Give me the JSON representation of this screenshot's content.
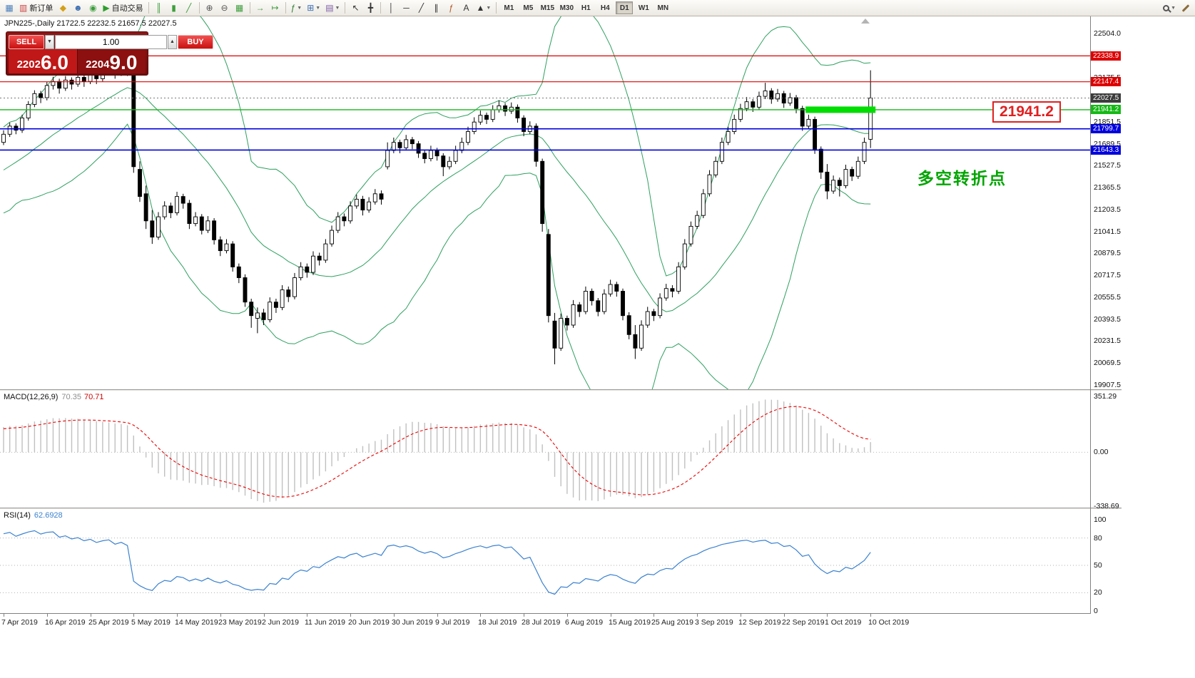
{
  "toolbar": {
    "items": [
      {
        "name": "chart-icon",
        "glyph": "▦",
        "color": "#4a7ebb"
      },
      {
        "name": "new-order-button",
        "glyph": "▥",
        "color": "#cc4444",
        "label": "新订单"
      },
      {
        "name": "mql5-icon",
        "glyph": "◆",
        "color": "#d4a017"
      },
      {
        "name": "community-icon",
        "glyph": "☻",
        "color": "#3d6fb4"
      },
      {
        "name": "news-icon",
        "glyph": "◉",
        "color": "#3d9e3d"
      },
      {
        "name": "autotrading-button",
        "glyph": "▶",
        "color": "#2e9e2e",
        "label": "自动交易"
      },
      {
        "sep": true
      },
      {
        "name": "bar-chart-button",
        "glyph": "║",
        "color": "#3d9e3d"
      },
      {
        "name": "candlestick-button",
        "glyph": "▮",
        "color": "#3d9e3d"
      },
      {
        "name": "line-chart-button",
        "glyph": "╱",
        "color": "#3d9e3d"
      },
      {
        "sep": true
      },
      {
        "name": "zoom-in-button",
        "glyph": "⊕",
        "color": "#555555"
      },
      {
        "name": "zoom-out-button",
        "glyph": "⊖",
        "color": "#555555"
      },
      {
        "name": "tile-windows-button",
        "glyph": "▦",
        "color": "#3d9e3d"
      },
      {
        "sep": true
      },
      {
        "name": "auto-scroll-button",
        "glyph": "→",
        "color": "#3d9e3d"
      },
      {
        "name": "chart-shift-button",
        "glyph": "↦",
        "color": "#3d9e3d"
      },
      {
        "sep": true
      },
      {
        "name": "indicators-button",
        "glyph": "ƒ",
        "color": "#2e7d32",
        "caret": true
      },
      {
        "name": "new-chart-button",
        "glyph": "⊞",
        "color": "#3d6fb4",
        "caret": true
      },
      {
        "name": "profiles-button",
        "glyph": "▤",
        "color": "#7b5aa6",
        "caret": true
      },
      {
        "sep": true
      },
      {
        "name": "cursor-button",
        "glyph": "↖",
        "color": "#333333"
      },
      {
        "name": "crosshair-button",
        "glyph": "╋",
        "color": "#333333"
      },
      {
        "sep": true
      },
      {
        "name": "vertical-line-button",
        "glyph": "│",
        "color": "#333333"
      },
      {
        "name": "horizontal-line-button",
        "glyph": "─",
        "color": "#333333"
      },
      {
        "name": "trendline-button",
        "glyph": "╱",
        "color": "#333333"
      },
      {
        "name": "channel-button",
        "glyph": "∥",
        "color": "#333333"
      },
      {
        "name": "fibonacci-button",
        "glyph": "ƒ",
        "color": "#b05a2a"
      },
      {
        "name": "text-button",
        "glyph": "A",
        "color": "#333333"
      },
      {
        "name": "arrows-button",
        "glyph": "▲",
        "color": "#333333",
        "caret": true
      },
      {
        "sep": true
      }
    ],
    "timeframes": [
      "M1",
      "M5",
      "M15",
      "M30",
      "H1",
      "H4",
      "D1",
      "W1",
      "MN"
    ],
    "active_timeframe": "D1",
    "right_items": [
      {
        "name": "search-button",
        "icon": "magnifier",
        "caret": true
      },
      {
        "name": "edit-button",
        "icon": "pencil"
      }
    ]
  },
  "chart": {
    "symbol_period": "JPN225-,Daily",
    "ohlc": "21722.5 22232.5 21657.5 22027.5",
    "annotation": "多空转折点",
    "annotation_color": "#00a500",
    "callout_price": "21941.2",
    "trade_panel": {
      "sell_label": "SELL",
      "buy_label": "BUY",
      "volume": "1.00",
      "sell_price_small": "2202",
      "sell_price_big": "6.0",
      "buy_price_small": "2204",
      "buy_price_big": "9.0"
    },
    "price_axis": {
      "ticks": [
        22504.0,
        22175.5,
        21851.5,
        21689.5,
        21527.5,
        21365.5,
        21203.5,
        21041.5,
        20879.5,
        20717.5,
        20555.5,
        20393.5,
        20231.5,
        20069.5,
        19907.5
      ]
    },
    "lines": [
      {
        "value": 22338.9,
        "color": "#dd0000",
        "width": 1.2,
        "style": "solid",
        "flag_bg": "#dd0000"
      },
      {
        "value": 22147.4,
        "color": "#dd0000",
        "width": 1.2,
        "style": "solid",
        "flag_bg": "#dd0000"
      },
      {
        "value": 22027.5,
        "color": "#777777",
        "width": 1,
        "style": "dot",
        "flag_bg": "#3c3c3c"
      },
      {
        "value": 21941.2,
        "color": "#16b916",
        "width": 1.4,
        "style": "solid",
        "flag_bg": "#16b916"
      },
      {
        "value": 21799.7,
        "color": "#0000dd",
        "width": 1.6,
        "style": "solid",
        "flag_bg": "#0000dd"
      },
      {
        "value": 21643.3,
        "color": "#0000dd",
        "width": 1.6,
        "style": "solid",
        "flag_bg": "#0000dd"
      }
    ],
    "highlight_segment": {
      "price": 21941.2,
      "from_bar": 129.5,
      "to_bar": 140.8,
      "color": "#00dd00",
      "thickness": 9
    },
    "bollinger": {
      "period": 20,
      "deviation": 2,
      "color": "#2ea05f"
    },
    "dates": [
      "7 Apr 2019",
      "16 Apr 2019",
      "25 Apr 2019",
      "5 May 2019",
      "14 May 2019",
      "23 May 2019",
      "2 Jun 2019",
      "11 Jun 2019",
      "20 Jun 2019",
      "30 Jun 2019",
      "9 Jul 2019",
      "18 Jul 2019",
      "28 Jul 2019",
      "6 Aug 2019",
      "15 Aug 2019",
      "25 Aug 2019",
      "3 Sep 2019",
      "12 Sep 2019",
      "22 Sep 2019",
      "1 Oct 2019",
      "10 Oct 2019"
    ],
    "bars_per_label": 7,
    "warmup_bars": 26,
    "candles": [
      [
        20920,
        20975,
        20900,
        20950
      ],
      [
        20950,
        21025,
        20930,
        21000
      ],
      [
        21000,
        21010,
        20950,
        20980
      ],
      [
        20980,
        21075,
        20960,
        21050
      ],
      [
        21050,
        21145,
        21030,
        21120
      ],
      [
        21120,
        21140,
        21070,
        21100
      ],
      [
        21100,
        21205,
        21080,
        21180
      ],
      [
        21180,
        21265,
        21160,
        21240
      ],
      [
        21240,
        21260,
        21170,
        21200
      ],
      [
        21200,
        21305,
        21180,
        21280
      ],
      [
        21280,
        21375,
        21260,
        21350
      ],
      [
        21350,
        21370,
        21290,
        21320
      ],
      [
        21320,
        21425,
        21300,
        21400
      ],
      [
        21400,
        21420,
        21350,
        21380
      ],
      [
        21380,
        21475,
        21360,
        21450
      ],
      [
        21450,
        21525,
        21430,
        21500
      ],
      [
        21500,
        21520,
        21450,
        21480
      ],
      [
        21480,
        21575,
        21460,
        21550
      ],
      [
        21550,
        21570,
        21500,
        21530
      ],
      [
        21530,
        21625,
        21510,
        21600
      ],
      [
        21600,
        21620,
        21550,
        21580
      ],
      [
        21580,
        21645,
        21560,
        21620
      ],
      [
        21620,
        21675,
        21600,
        21650
      ],
      [
        21650,
        21670,
        21610,
        21640
      ],
      [
        21640,
        21705,
        21620,
        21680
      ],
      [
        21680,
        21725,
        21660,
        21700
      ],
      [
        21700,
        21790,
        21680,
        21760
      ],
      [
        21760,
        21845,
        21740,
        21820
      ],
      [
        21820,
        21840,
        21760,
        21790
      ],
      [
        21790,
        21905,
        21770,
        21880
      ],
      [
        21880,
        22005,
        21860,
        21980
      ],
      [
        21980,
        22085,
        21960,
        22060
      ],
      [
        22060,
        22080,
        21990,
        22030
      ],
      [
        22030,
        22145,
        22010,
        22120
      ],
      [
        22120,
        22185,
        22090,
        22150
      ],
      [
        22150,
        22170,
        22060,
        22100
      ],
      [
        22100,
        22190,
        22080,
        22160
      ],
      [
        22160,
        22180,
        22090,
        22130
      ],
      [
        22130,
        22215,
        22110,
        22180
      ],
      [
        22180,
        22200,
        22110,
        22150
      ],
      [
        22150,
        22245,
        22130,
        22200
      ],
      [
        22200,
        22220,
        22130,
        22170
      ],
      [
        22170,
        22255,
        22150,
        22220
      ],
      [
        22220,
        22285,
        22200,
        22250
      ],
      [
        22250,
        22270,
        22170,
        22210
      ],
      [
        22210,
        22295,
        22190,
        22260
      ],
      [
        22260,
        22285,
        22190,
        22230
      ],
      [
        22200,
        22235,
        21475,
        21520
      ],
      [
        21500,
        21560,
        21260,
        21300
      ],
      [
        21320,
        21380,
        21060,
        21120
      ],
      [
        21120,
        21200,
        20950,
        21000
      ],
      [
        21000,
        21185,
        20980,
        21150
      ],
      [
        21150,
        21265,
        21130,
        21230
      ],
      [
        21230,
        21255,
        21140,
        21180
      ],
      [
        21180,
        21335,
        21160,
        21300
      ],
      [
        21300,
        21320,
        21210,
        21250
      ],
      [
        21250,
        21275,
        21060,
        21100
      ],
      [
        21100,
        21185,
        21080,
        21150
      ],
      [
        21150,
        21170,
        21020,
        21050
      ],
      [
        21050,
        21155,
        21030,
        21120
      ],
      [
        21120,
        21140,
        20945,
        20980
      ],
      [
        20980,
        21005,
        20860,
        20900
      ],
      [
        20900,
        20985,
        20880,
        20950
      ],
      [
        20950,
        20970,
        20745,
        20780
      ],
      [
        20780,
        20805,
        20660,
        20700
      ],
      [
        20700,
        20725,
        20485,
        20520
      ],
      [
        20520,
        20545,
        20330,
        20420
      ],
      [
        20400,
        20480,
        20290,
        20440
      ],
      [
        20440,
        20470,
        20350,
        20390
      ],
      [
        20390,
        20555,
        20370,
        20520
      ],
      [
        20520,
        20545,
        20440,
        20480
      ],
      [
        20480,
        20645,
        20460,
        20610
      ],
      [
        20610,
        20635,
        20520,
        20560
      ],
      [
        20560,
        20735,
        20540,
        20700
      ],
      [
        20700,
        20815,
        20680,
        20780
      ],
      [
        20780,
        20805,
        20700,
        20740
      ],
      [
        20740,
        20895,
        20720,
        20860
      ],
      [
        20860,
        20885,
        20790,
        20830
      ],
      [
        20830,
        20985,
        20810,
        20950
      ],
      [
        20950,
        21085,
        20930,
        21050
      ],
      [
        21050,
        21185,
        21030,
        21150
      ],
      [
        21150,
        21175,
        21080,
        21120
      ],
      [
        21120,
        21265,
        21100,
        21230
      ],
      [
        21230,
        21315,
        21210,
        21280
      ],
      [
        21280,
        21305,
        21160,
        21200
      ],
      [
        21200,
        21295,
        21180,
        21260
      ],
      [
        21260,
        21355,
        21240,
        21320
      ],
      [
        21320,
        21345,
        21240,
        21280
      ],
      [
        21520,
        21700,
        21500,
        21640
      ],
      [
        21640,
        21735,
        21620,
        21700
      ],
      [
        21700,
        21720,
        21620,
        21660
      ],
      [
        21660,
        21755,
        21640,
        21720
      ],
      [
        21720,
        21740,
        21650,
        21690
      ],
      [
        21690,
        21710,
        21585,
        21620
      ],
      [
        21620,
        21645,
        21545,
        21580
      ],
      [
        21580,
        21675,
        21560,
        21640
      ],
      [
        21640,
        21660,
        21565,
        21600
      ],
      [
        21600,
        21620,
        21450,
        21520
      ],
      [
        21520,
        21595,
        21500,
        21560
      ],
      [
        21560,
        21675,
        21540,
        21640
      ],
      [
        21640,
        21735,
        21620,
        21700
      ],
      [
        21700,
        21815,
        21680,
        21780
      ],
      [
        21780,
        21885,
        21760,
        21850
      ],
      [
        21850,
        21935,
        21830,
        21900
      ],
      [
        21900,
        21920,
        21835,
        21870
      ],
      [
        21870,
        21975,
        21850,
        21940
      ],
      [
        21940,
        22010,
        21920,
        21970
      ],
      [
        21970,
        21990,
        21895,
        21930
      ],
      [
        21930,
        21995,
        21910,
        21960
      ],
      [
        21960,
        21980,
        21845,
        21880
      ],
      [
        21880,
        21900,
        21745,
        21780
      ],
      [
        21780,
        21855,
        21760,
        21820
      ],
      [
        21820,
        21840,
        21520,
        21560
      ],
      [
        21560,
        21580,
        21040,
        21100
      ],
      [
        21020,
        21060,
        20370,
        20420
      ],
      [
        20380,
        20440,
        20060,
        20180
      ],
      [
        20180,
        20435,
        20160,
        20400
      ],
      [
        20400,
        20420,
        20310,
        20350
      ],
      [
        20350,
        20535,
        20330,
        20500
      ],
      [
        20500,
        20520,
        20410,
        20450
      ],
      [
        20450,
        20635,
        20430,
        20600
      ],
      [
        20600,
        20620,
        20495,
        20530
      ],
      [
        20530,
        20550,
        20415,
        20450
      ],
      [
        20450,
        20615,
        20430,
        20580
      ],
      [
        20580,
        20685,
        20560,
        20650
      ],
      [
        20650,
        20670,
        20560,
        20600
      ],
      [
        20600,
        20620,
        20385,
        20420
      ],
      [
        20420,
        20445,
        20245,
        20280
      ],
      [
        20280,
        20350,
        20100,
        20180
      ],
      [
        20180,
        20385,
        20160,
        20350
      ],
      [
        20350,
        20485,
        20330,
        20450
      ],
      [
        20450,
        20470,
        20380,
        20420
      ],
      [
        20420,
        20585,
        20400,
        20550
      ],
      [
        20550,
        20655,
        20530,
        20620
      ],
      [
        20620,
        20645,
        20555,
        20600
      ],
      [
        20600,
        20815,
        20580,
        20780
      ],
      [
        20780,
        20985,
        20760,
        20950
      ],
      [
        20950,
        21115,
        20930,
        21080
      ],
      [
        21080,
        21195,
        21060,
        21160
      ],
      [
        21160,
        21355,
        21140,
        21320
      ],
      [
        21320,
        21495,
        21300,
        21460
      ],
      [
        21460,
        21595,
        21440,
        21560
      ],
      [
        21560,
        21735,
        21540,
        21700
      ],
      [
        21700,
        21815,
        21680,
        21780
      ],
      [
        21780,
        21905,
        21760,
        21870
      ],
      [
        21870,
        21985,
        21850,
        21950
      ],
      [
        21950,
        22035,
        21930,
        22000
      ],
      [
        22000,
        22020,
        21925,
        21960
      ],
      [
        21960,
        22075,
        21940,
        22040
      ],
      [
        22040,
        22140,
        22020,
        22080
      ],
      [
        22080,
        22100,
        21985,
        22020
      ],
      [
        22020,
        22095,
        22000,
        22060
      ],
      [
        22060,
        22080,
        21955,
        21990
      ],
      [
        21990,
        22065,
        21970,
        22030
      ],
      [
        22030,
        22050,
        21915,
        21950
      ],
      [
        21950,
        21970,
        21785,
        21820
      ],
      [
        21820,
        21905,
        21800,
        21870
      ],
      [
        21870,
        21890,
        21615,
        21650
      ],
      [
        21650,
        21670,
        21430,
        21480
      ],
      [
        21480,
        21540,
        21280,
        21340
      ],
      [
        21340,
        21455,
        21320,
        21420
      ],
      [
        21420,
        21440,
        21300,
        21380
      ],
      [
        21380,
        21535,
        21360,
        21500
      ],
      [
        21500,
        21520,
        21415,
        21450
      ],
      [
        21450,
        21595,
        21430,
        21560
      ],
      [
        21560,
        21735,
        21540,
        21700
      ],
      [
        21722.5,
        22232.5,
        21657.5,
        22027.5
      ]
    ]
  },
  "macd": {
    "name": "MACD(12,26,9)",
    "value_main": "70.35",
    "value_signal": "70.71",
    "fast": 12,
    "slow": 26,
    "signal": 9,
    "axis": [
      {
        "label": "351.29",
        "value": 351.29
      },
      {
        "label": "0.00",
        "value": 0
      },
      {
        "label": "-338.69",
        "value": -338.69
      }
    ],
    "histogram_color": "#c0c0c0",
    "signal_color": "#ee0000"
  },
  "rsi": {
    "name": "RSI(14)",
    "value": "62.6928",
    "period": 14,
    "line_color": "#3b82d0",
    "levels": [
      {
        "label": "100",
        "value": 100,
        "dotted": false
      },
      {
        "label": "80",
        "value": 80,
        "dotted": true
      },
      {
        "label": "50",
        "value": 50,
        "dotted": true
      },
      {
        "label": "20",
        "value": 20,
        "dotted": true
      },
      {
        "label": "0",
        "value": 0,
        "dotted": false
      }
    ]
  }
}
